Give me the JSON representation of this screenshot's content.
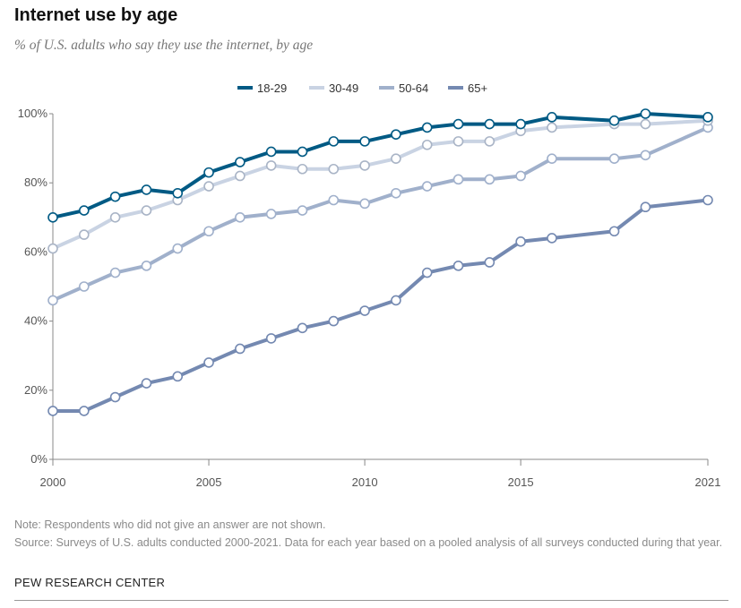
{
  "header": {
    "title": "Internet use by age",
    "subtitle": "% of U.S. adults who say they use the internet, by age"
  },
  "footer": {
    "note": "Note: Respondents who did not give an answer are not shown.",
    "source": "Source: Surveys of U.S. adults conducted 2000-2021. Data for each year based on a pooled analysis of all surveys conducted during that year.",
    "credit": "PEW RESEARCH CENTER"
  },
  "chart_data": {
    "type": "line",
    "title": "Internet use by age",
    "xlabel": "",
    "ylabel": "",
    "xlim": [
      2000,
      2021
    ],
    "ylim": [
      0,
      100
    ],
    "x_ticks": [
      2000,
      2005,
      2010,
      2015,
      2021
    ],
    "y_ticks": [
      "0%",
      "20%",
      "40%",
      "60%",
      "80%",
      "100%"
    ],
    "grid": false,
    "legend_position": "top-center",
    "x": [
      2000,
      2001,
      2002,
      2003,
      2004,
      2005,
      2006,
      2007,
      2008,
      2009,
      2010,
      2011,
      2012,
      2013,
      2014,
      2015,
      2016,
      2018,
      2019,
      2021
    ],
    "series": [
      {
        "name": "18-29",
        "color": "#005a84",
        "values": [
          70,
          72,
          76,
          78,
          77,
          83,
          86,
          89,
          89,
          92,
          92,
          94,
          96,
          97,
          97,
          97,
          99,
          98,
          100,
          99
        ]
      },
      {
        "name": "30-49",
        "color": "#c9d3e3",
        "values": [
          61,
          65,
          70,
          72,
          75,
          79,
          82,
          85,
          84,
          84,
          85,
          87,
          91,
          92,
          92,
          95,
          96,
          97,
          97,
          98
        ]
      },
      {
        "name": "50-64",
        "color": "#a0b0cb",
        "values": [
          46,
          50,
          54,
          56,
          61,
          66,
          70,
          71,
          72,
          75,
          74,
          77,
          79,
          81,
          81,
          82,
          87,
          87,
          88,
          96
        ]
      },
      {
        "name": "65+",
        "color": "#7489b1",
        "values": [
          14,
          14,
          18,
          22,
          24,
          28,
          32,
          35,
          38,
          40,
          43,
          46,
          54,
          56,
          57,
          63,
          64,
          66,
          73,
          75
        ]
      }
    ]
  }
}
